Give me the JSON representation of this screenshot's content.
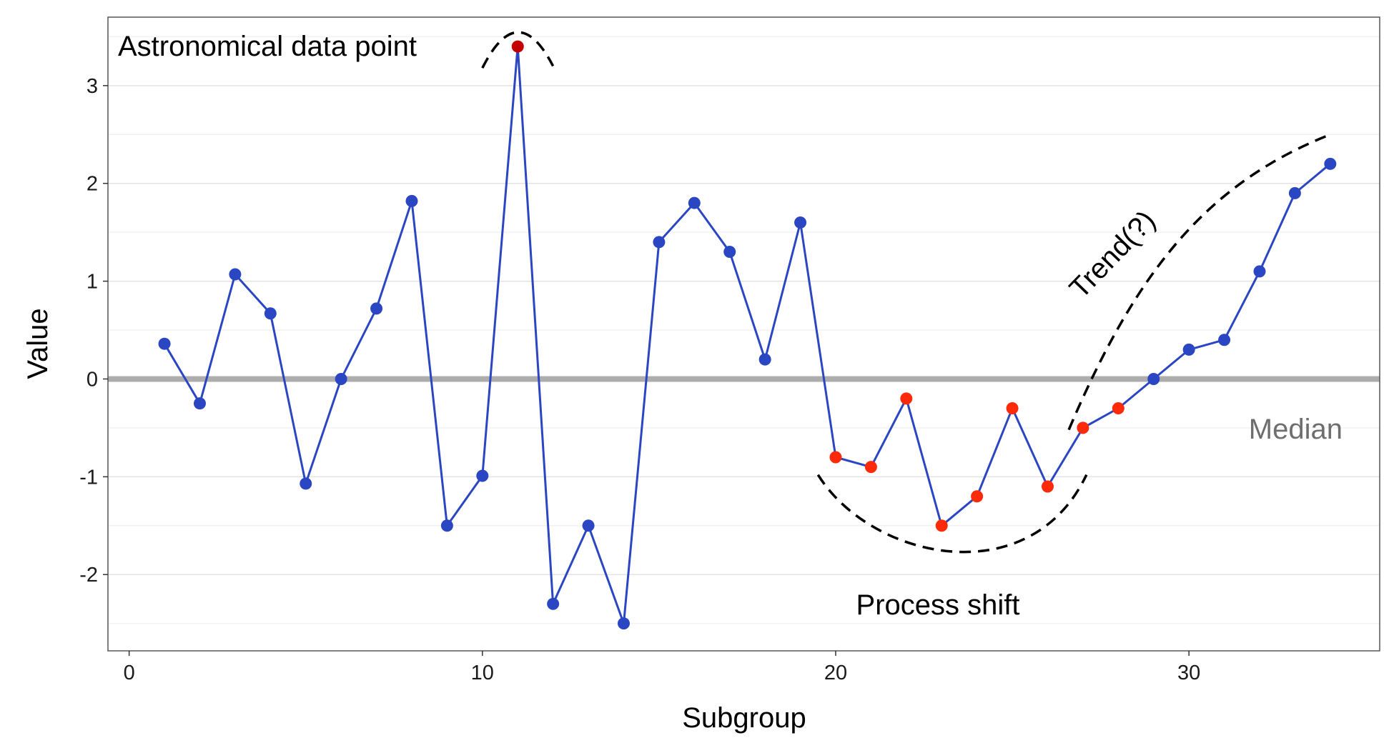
{
  "chart_data": {
    "type": "line",
    "xlabel": "Subgroup",
    "ylabel": "Value",
    "xlim": [
      -0.6,
      35.4
    ],
    "ylim": [
      -2.78,
      3.7
    ],
    "x_ticks": [
      0,
      10,
      20,
      30
    ],
    "y_ticks": [
      -2,
      -1,
      0,
      1,
      2,
      3
    ],
    "grid": true,
    "median": 0,
    "median_label": "Median",
    "series": [
      {
        "x": [
          1,
          2,
          3,
          4,
          5,
          6,
          7,
          8,
          9,
          10,
          11,
          12,
          13,
          14,
          15,
          16,
          17,
          18,
          19,
          20,
          21,
          22,
          23,
          24,
          25,
          26,
          27,
          28,
          29,
          30,
          31,
          32,
          33,
          34
        ],
        "values": [
          0.36,
          -0.25,
          1.07,
          0.67,
          -1.07,
          0.0,
          0.72,
          1.82,
          -1.5,
          -0.99,
          3.4,
          -2.3,
          -1.5,
          -2.5,
          1.4,
          1.8,
          1.3,
          0.2,
          1.6,
          -0.8,
          -0.9,
          -0.2,
          -1.5,
          -1.2,
          -0.3,
          -1.1,
          -0.5,
          -0.3,
          0.0,
          0.3,
          0.4,
          1.1,
          1.9,
          2.2
        ],
        "point_status": [
          "normal",
          "normal",
          "normal",
          "normal",
          "normal",
          "normal",
          "normal",
          "normal",
          "normal",
          "normal",
          "astronomical",
          "normal",
          "normal",
          "normal",
          "normal",
          "normal",
          "normal",
          "normal",
          "normal",
          "shift",
          "shift",
          "shift",
          "shift",
          "shift",
          "shift",
          "shift",
          "shift",
          "shift",
          "normal",
          "normal",
          "normal",
          "normal",
          "normal",
          "normal"
        ]
      }
    ],
    "annotations": {
      "astronomical": "Astronomical data point",
      "shift": "Process shift",
      "trend": "Trend(?)"
    },
    "colors": {
      "line": "#2b46c2",
      "normal": "#2b46c2",
      "shift": "#ff2a0a",
      "astronomical": "#c40000",
      "median": "#adadad",
      "grid_major": "#e3e3e3",
      "grid_minor": "#f2f2f2",
      "panel_border": "#555555"
    }
  }
}
